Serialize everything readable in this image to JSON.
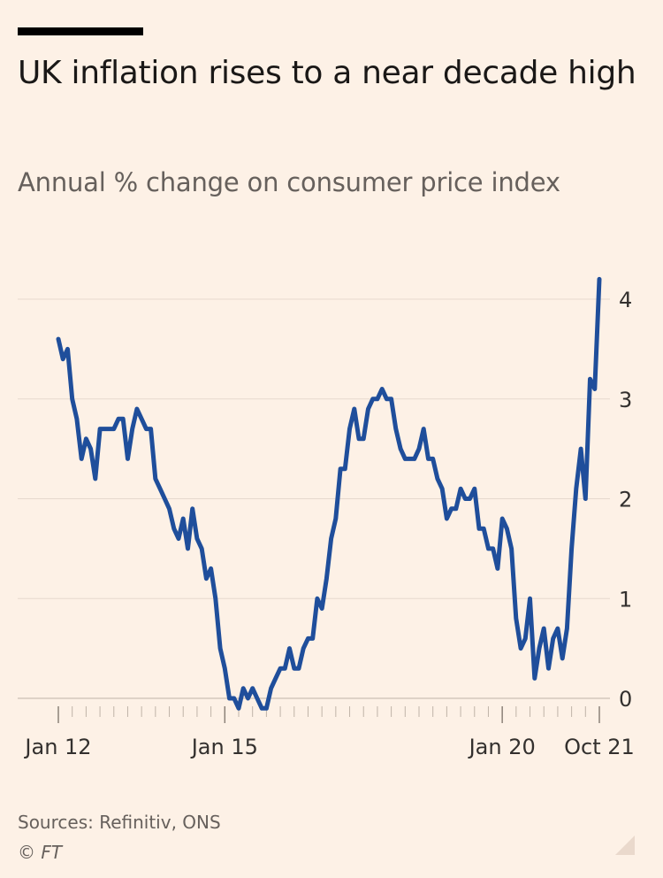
{
  "header": {
    "title": "UK inflation rises to a near decade high",
    "subtitle": "Annual % change on consumer price index"
  },
  "footer": {
    "sources": "Sources: Refinitiv, ONS",
    "copyright": "© FT"
  },
  "colors": {
    "background": "#FDF1E6",
    "line": "#1F4E9B",
    "grid": "#E6D9CE",
    "text": "#33302E",
    "muted": "#66605C"
  },
  "chart_data": {
    "type": "line",
    "title": "UK inflation rises to a near decade high",
    "subtitle": "Annual % change on consumer price index",
    "xlabel": "",
    "ylabel": "",
    "ylim": [
      0,
      4
    ],
    "yticks": [
      0,
      1,
      2,
      3,
      4
    ],
    "y_axis_position": "right",
    "grid": true,
    "x_tick_labels": [
      {
        "label": "Jan 12",
        "index": 0
      },
      {
        "label": "Jan 15",
        "index": 36
      },
      {
        "label": "Jan 20",
        "index": 96
      },
      {
        "label": "Oct 21",
        "index": 117
      }
    ],
    "x_start": "Jan 2012",
    "x_end": "Oct 2021",
    "frequency": "monthly",
    "series": [
      {
        "name": "CPI annual % change",
        "values": [
          3.6,
          3.4,
          3.5,
          3.0,
          2.8,
          2.4,
          2.6,
          2.5,
          2.2,
          2.7,
          2.7,
          2.7,
          2.7,
          2.8,
          2.8,
          2.4,
          2.7,
          2.9,
          2.8,
          2.7,
          2.7,
          2.2,
          2.1,
          2.0,
          1.9,
          1.7,
          1.6,
          1.8,
          1.5,
          1.9,
          1.6,
          1.5,
          1.2,
          1.3,
          1.0,
          0.5,
          0.3,
          0.0,
          0.0,
          -0.1,
          0.1,
          0.0,
          0.1,
          0.0,
          -0.1,
          -0.1,
          0.1,
          0.2,
          0.3,
          0.3,
          0.5,
          0.3,
          0.3,
          0.5,
          0.6,
          0.6,
          1.0,
          0.9,
          1.2,
          1.6,
          1.8,
          2.3,
          2.3,
          2.7,
          2.9,
          2.6,
          2.6,
          2.9,
          3.0,
          3.0,
          3.1,
          3.0,
          3.0,
          2.7,
          2.5,
          2.4,
          2.4,
          2.4,
          2.5,
          2.7,
          2.4,
          2.4,
          2.2,
          2.1,
          1.8,
          1.9,
          1.9,
          2.1,
          2.0,
          2.0,
          2.1,
          1.7,
          1.7,
          1.5,
          1.5,
          1.3,
          1.8,
          1.7,
          1.5,
          0.8,
          0.5,
          0.6,
          1.0,
          0.2,
          0.5,
          0.7,
          0.3,
          0.6,
          0.7,
          0.4,
          0.7,
          1.5,
          2.1,
          2.5,
          2.0,
          3.2,
          3.1,
          4.2
        ]
      }
    ]
  }
}
